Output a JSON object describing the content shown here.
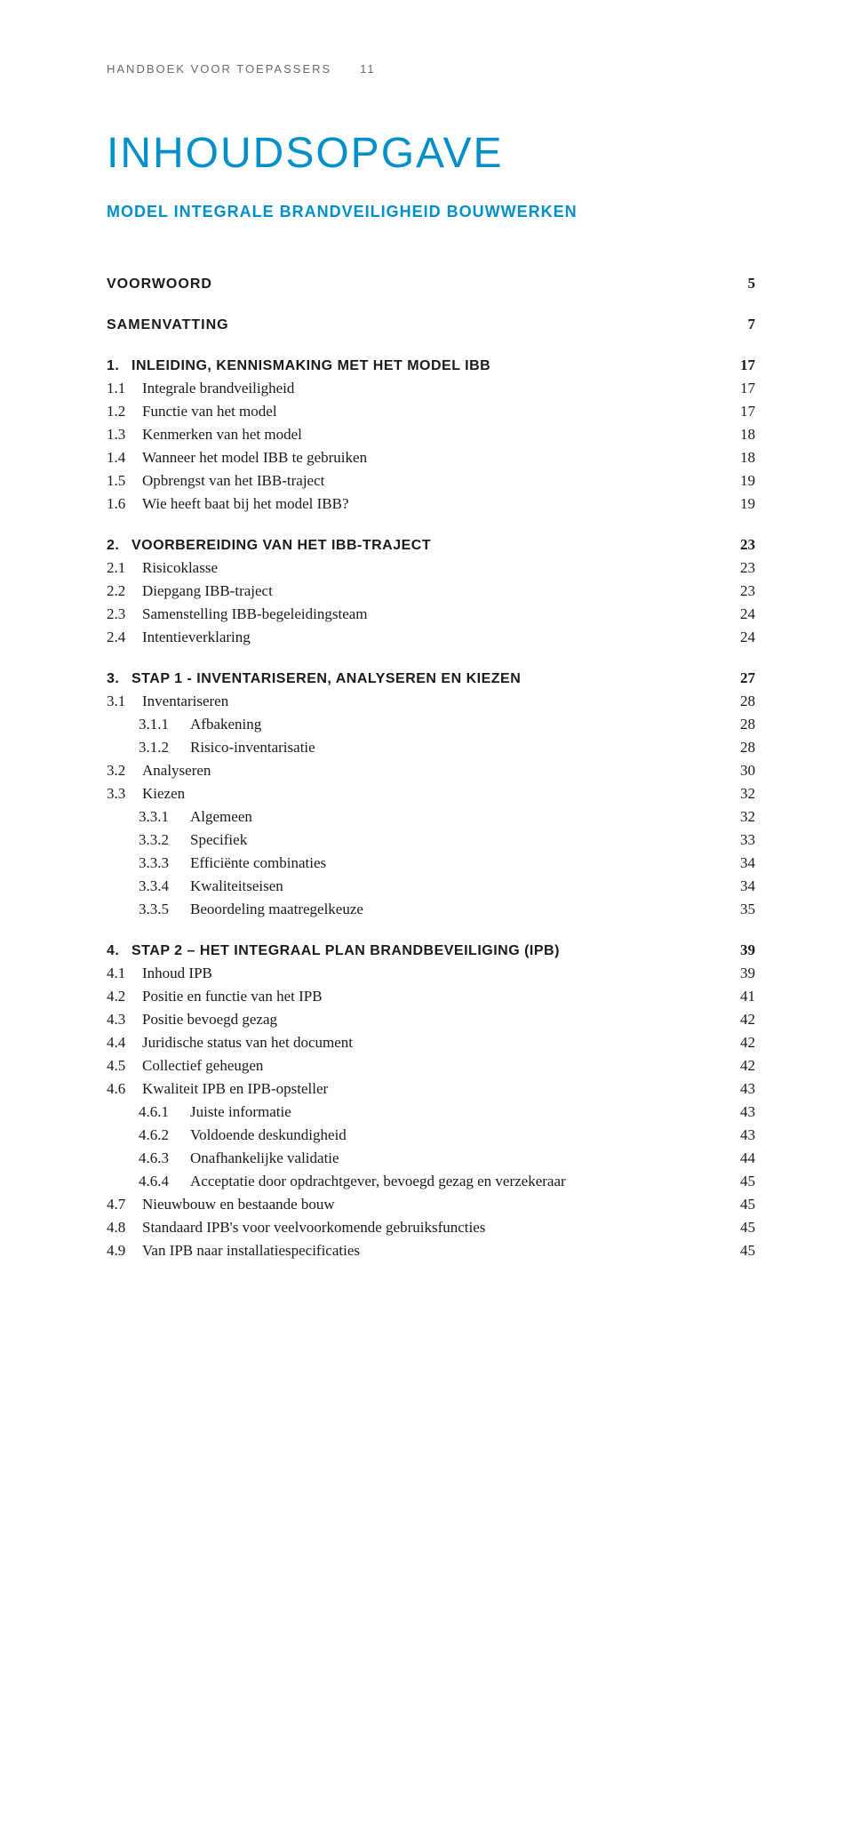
{
  "colors": {
    "accent": "#0090c9",
    "body": "#1a1a1a",
    "muted": "#6a6a6a",
    "background": "#ffffff"
  },
  "typography": {
    "title_fontsize": 48,
    "subtitle_fontsize": 18,
    "heading_fontsize": 16,
    "body_fontsize": 17,
    "running_head_fontsize": 13,
    "sans_family": "Arial, Helvetica, sans-serif",
    "serif_family": "Georgia, serif"
  },
  "running_head": {
    "text": "HANDBOEK VOOR TOEPASSERS",
    "page_number": "11"
  },
  "title": "INHOUDSOPGAVE",
  "subtitle": "MODEL INTEGRALE BRANDVEILIGHEID BOUWWERKEN",
  "front_matter": [
    {
      "label": "VOORWOORD",
      "page": "5"
    },
    {
      "label": "SAMENVATTING",
      "page": "7"
    }
  ],
  "chapters": [
    {
      "num": "1.",
      "label": "INLEIDING, KENNISMAKING MET HET MODEL IBB",
      "page": "17",
      "items": [
        {
          "num": "1.1",
          "label": "Integrale brandveiligheid",
          "page": "17"
        },
        {
          "num": "1.2",
          "label": "Functie van het model",
          "page": "17"
        },
        {
          "num": "1.3",
          "label": "Kenmerken van het model",
          "page": "18"
        },
        {
          "num": "1.4",
          "label": "Wanneer het model IBB te gebruiken",
          "page": "18"
        },
        {
          "num": "1.5",
          "label": "Opbrengst van het IBB-traject",
          "page": "19"
        },
        {
          "num": "1.6",
          "label": "Wie heeft baat bij het model IBB?",
          "page": "19"
        }
      ]
    },
    {
      "num": "2.",
      "label": "VOORBEREIDING VAN HET IBB-TRAJECT",
      "page": "23",
      "items": [
        {
          "num": "2.1",
          "label": "Risicoklasse",
          "page": "23"
        },
        {
          "num": "2.2",
          "label": "Diepgang IBB-traject",
          "page": "23"
        },
        {
          "num": "2.3",
          "label": "Samenstelling IBB-begeleidingsteam",
          "page": "24"
        },
        {
          "num": "2.4",
          "label": "Intentieverklaring",
          "page": "24"
        }
      ]
    },
    {
      "num": "3.",
      "label": "STAP 1 - INVENTARISEREN, ANALYSEREN EN KIEZEN",
      "page": "27",
      "items": [
        {
          "num": "3.1",
          "label": "Inventariseren",
          "page": "28"
        },
        {
          "num": "3.1.1",
          "label": "Afbakening",
          "page": "28",
          "level": 2
        },
        {
          "num": "3.1.2",
          "label": "Risico-inventarisatie",
          "page": "28",
          "level": 2
        },
        {
          "num": "3.2",
          "label": "Analyseren",
          "page": "30"
        },
        {
          "num": "3.3",
          "label": "Kiezen",
          "page": "32"
        },
        {
          "num": "3.3.1",
          "label": "Algemeen",
          "page": "32",
          "level": 2
        },
        {
          "num": "3.3.2",
          "label": "Specifiek",
          "page": "33",
          "level": 2
        },
        {
          "num": "3.3.3",
          "label": "Efficiënte combinaties",
          "page": "34",
          "level": 2
        },
        {
          "num": "3.3.4",
          "label": "Kwaliteitseisen",
          "page": "34",
          "level": 2
        },
        {
          "num": "3.3.5",
          "label": "Beoordeling maatregelkeuze",
          "page": "35",
          "level": 2
        }
      ]
    },
    {
      "num": "4.",
      "label": "STAP 2 – HET INTEGRAAL PLAN BRANDBEVEILIGING (IPB)",
      "page": "39",
      "items": [
        {
          "num": "4.1",
          "label": "Inhoud IPB",
          "page": "39"
        },
        {
          "num": "4.2",
          "label": "Positie en functie van het IPB",
          "page": "41"
        },
        {
          "num": "4.3",
          "label": "Positie bevoegd gezag",
          "page": "42"
        },
        {
          "num": "4.4",
          "label": "Juridische status van het document",
          "page": "42"
        },
        {
          "num": "4.5",
          "label": "Collectief geheugen",
          "page": "42"
        },
        {
          "num": "4.6",
          "label": "Kwaliteit IPB en IPB-opsteller",
          "page": "43"
        },
        {
          "num": "4.6.1",
          "label": "Juiste informatie",
          "page": "43",
          "level": 2
        },
        {
          "num": "4.6.2",
          "label": "Voldoende deskundigheid",
          "page": "43",
          "level": 2
        },
        {
          "num": "4.6.3",
          "label": "Onafhankelijke validatie",
          "page": "44",
          "level": 2
        },
        {
          "num": "4.6.4",
          "label": "Acceptatie door opdrachtgever, bevoegd gezag en verzekeraar",
          "page": "45",
          "level": 2
        },
        {
          "num": "4.7",
          "label": "Nieuwbouw en bestaande bouw",
          "page": "45"
        },
        {
          "num": "4.8",
          "label": "Standaard IPB's voor veelvoorkomende gebruiksfuncties",
          "page": "45"
        },
        {
          "num": "4.9",
          "label": "Van IPB naar installatiespecificaties",
          "page": "45"
        }
      ]
    }
  ]
}
